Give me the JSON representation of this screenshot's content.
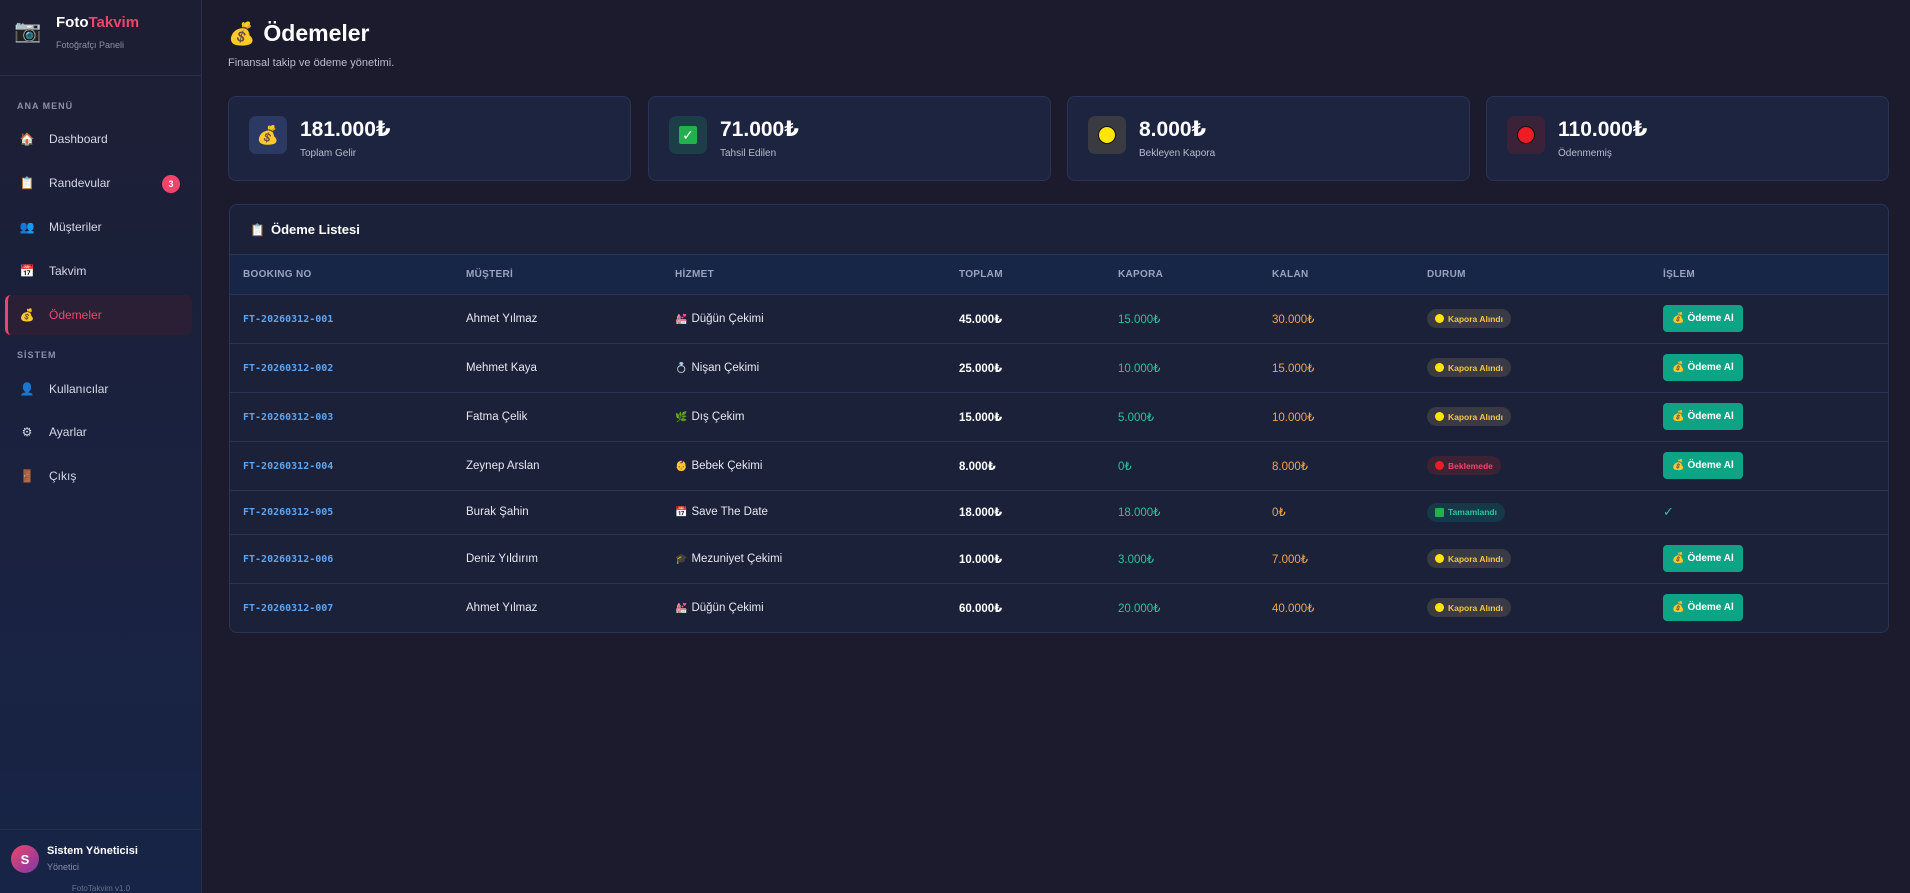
{
  "brand": {
    "name_part1": "Foto",
    "name_part2": "Takvim",
    "subtitle": "Fotoğrafçı Paneli",
    "icon": "camera-icon"
  },
  "sidebar": {
    "main_label": "ANA MENÜ",
    "system_label": "SİSTEM",
    "items": [
      {
        "label": "Dashboard",
        "icon": "🏠"
      },
      {
        "label": "Randevular",
        "icon": "📋",
        "badge": "3"
      },
      {
        "label": "Müşteriler",
        "icon": "👥"
      },
      {
        "label": "Takvim",
        "icon": "📅"
      },
      {
        "label": "Ödemeler",
        "icon": "💰",
        "active": true
      }
    ],
    "system_items": [
      {
        "label": "Kullanıcılar",
        "icon": "👤"
      },
      {
        "label": "Ayarlar",
        "icon": "⚙"
      },
      {
        "label": "Çıkış",
        "icon": "🚪"
      }
    ],
    "user": {
      "initial": "S",
      "name": "Sistem Yöneticisi",
      "role": "Yönetici"
    },
    "version": "FotoTakvim v1.0"
  },
  "header": {
    "title": "Ödemeler",
    "subtitle": "Finansal takip ve ödeme yönetimi."
  },
  "stats": [
    {
      "value": "181.000₺",
      "label": "Toplam Gelir",
      "icon": "money-bag-icon"
    },
    {
      "value": "71.000₺",
      "label": "Tahsil Edilen",
      "icon": "check-box-icon"
    },
    {
      "value": "8.000₺",
      "label": "Bekleyen Kapora",
      "icon": "yellow-circle-icon"
    },
    {
      "value": "110.000₺",
      "label": "Ödenmemiş",
      "icon": "red-circle-icon"
    }
  ],
  "table": {
    "title": "Ödeme Listesi",
    "columns": [
      "BOOKING NO",
      "MÜŞTERİ",
      "HİZMET",
      "TOPLAM",
      "KAPORA",
      "KALAN",
      "DURUM",
      "İŞLEM"
    ],
    "action_label": "Ödeme Al",
    "done_mark": "✓",
    "rows": [
      {
        "booking": "FT-20260312-001",
        "customer": "Ahmet Yılmaz",
        "service": "Düğün Çekimi",
        "service_icon": "💒",
        "total": "45.000₺",
        "deposit": "15.000₺",
        "remaining": "30.000₺",
        "status": "Kapora Alındı",
        "status_type": "kapora"
      },
      {
        "booking": "FT-20260312-002",
        "customer": "Mehmet Kaya",
        "service": "Nişan Çekimi",
        "service_icon": "💍",
        "total": "25.000₺",
        "deposit": "10.000₺",
        "remaining": "15.000₺",
        "status": "Kapora Alındı",
        "status_type": "kapora"
      },
      {
        "booking": "FT-20260312-003",
        "customer": "Fatma Çelik",
        "service": "Dış Çekim",
        "service_icon": "🌿",
        "total": "15.000₺",
        "deposit": "5.000₺",
        "remaining": "10.000₺",
        "status": "Kapora Alındı",
        "status_type": "kapora"
      },
      {
        "booking": "FT-20260312-004",
        "customer": "Zeynep Arslan",
        "service": "Bebek Çekimi",
        "service_icon": "👶",
        "total": "8.000₺",
        "deposit": "0₺",
        "remaining": "8.000₺",
        "status": "Beklemede",
        "status_type": "bekle"
      },
      {
        "booking": "FT-20260312-005",
        "customer": "Burak Şahin",
        "service": "Save The Date",
        "service_icon": "📅",
        "total": "18.000₺",
        "deposit": "18.000₺",
        "remaining": "0₺",
        "status": "Tamamlandı",
        "status_type": "tamam"
      },
      {
        "booking": "FT-20260312-006",
        "customer": "Deniz Yıldırım",
        "service": "Mezuniyet Çekimi",
        "service_icon": "🎓",
        "total": "10.000₺",
        "deposit": "3.000₺",
        "remaining": "7.000₺",
        "status": "Kapora Alındı",
        "status_type": "kapora"
      },
      {
        "booking": "FT-20260312-007",
        "customer": "Ahmet Yılmaz",
        "service": "Düğün Çekimi",
        "service_icon": "💒",
        "total": "60.000₺",
        "deposit": "20.000₺",
        "remaining": "40.000₺",
        "status": "Kapora Alındı",
        "status_type": "kapora"
      }
    ]
  },
  "colors": {
    "accent": "#f0446a",
    "success": "#0fa386",
    "deposit": "#2cc3a0",
    "remaining": "#f2a54a",
    "link": "#5fa4f0"
  }
}
